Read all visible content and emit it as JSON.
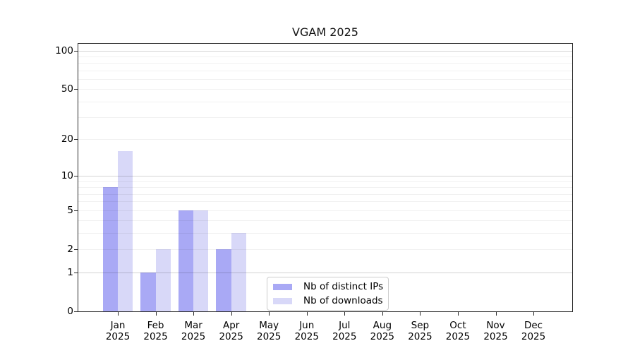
{
  "chart_data": {
    "type": "bar",
    "title": "VGAM 2025",
    "year": "2025",
    "categories": [
      "Jan",
      "Feb",
      "Mar",
      "Apr",
      "May",
      "Jun",
      "Jul",
      "Aug",
      "Sep",
      "Oct",
      "Nov",
      "Dec"
    ],
    "series": [
      {
        "name": "Nb of distinct IPs",
        "color": "#a9a9f5",
        "values": [
          8,
          1,
          5,
          2,
          0,
          0,
          0,
          0,
          0,
          0,
          0,
          0
        ]
      },
      {
        "name": "Nb of downloads",
        "color": "#d8d8f8",
        "values": [
          16,
          2,
          5,
          3,
          0,
          0,
          0,
          0,
          0,
          0,
          0,
          0
        ]
      }
    ],
    "yscale": "log1p",
    "ylim": [
      0,
      113
    ],
    "yticks": [
      0,
      1,
      2,
      5,
      10,
      20,
      50,
      100
    ],
    "ytick_labels": [
      "0",
      "1",
      "2",
      "5",
      "10",
      "20",
      "50",
      "100"
    ],
    "major_gridlines": [
      1,
      10,
      100
    ],
    "minor_gridlines": [
      2,
      3,
      4,
      5,
      6,
      7,
      8,
      9,
      20,
      30,
      40,
      50,
      60,
      70,
      80,
      90
    ],
    "grid": "on",
    "legend_position": "inside-bottom-left-of-center",
    "spine_color": "#2b2b2b",
    "background": "#ffffff"
  }
}
